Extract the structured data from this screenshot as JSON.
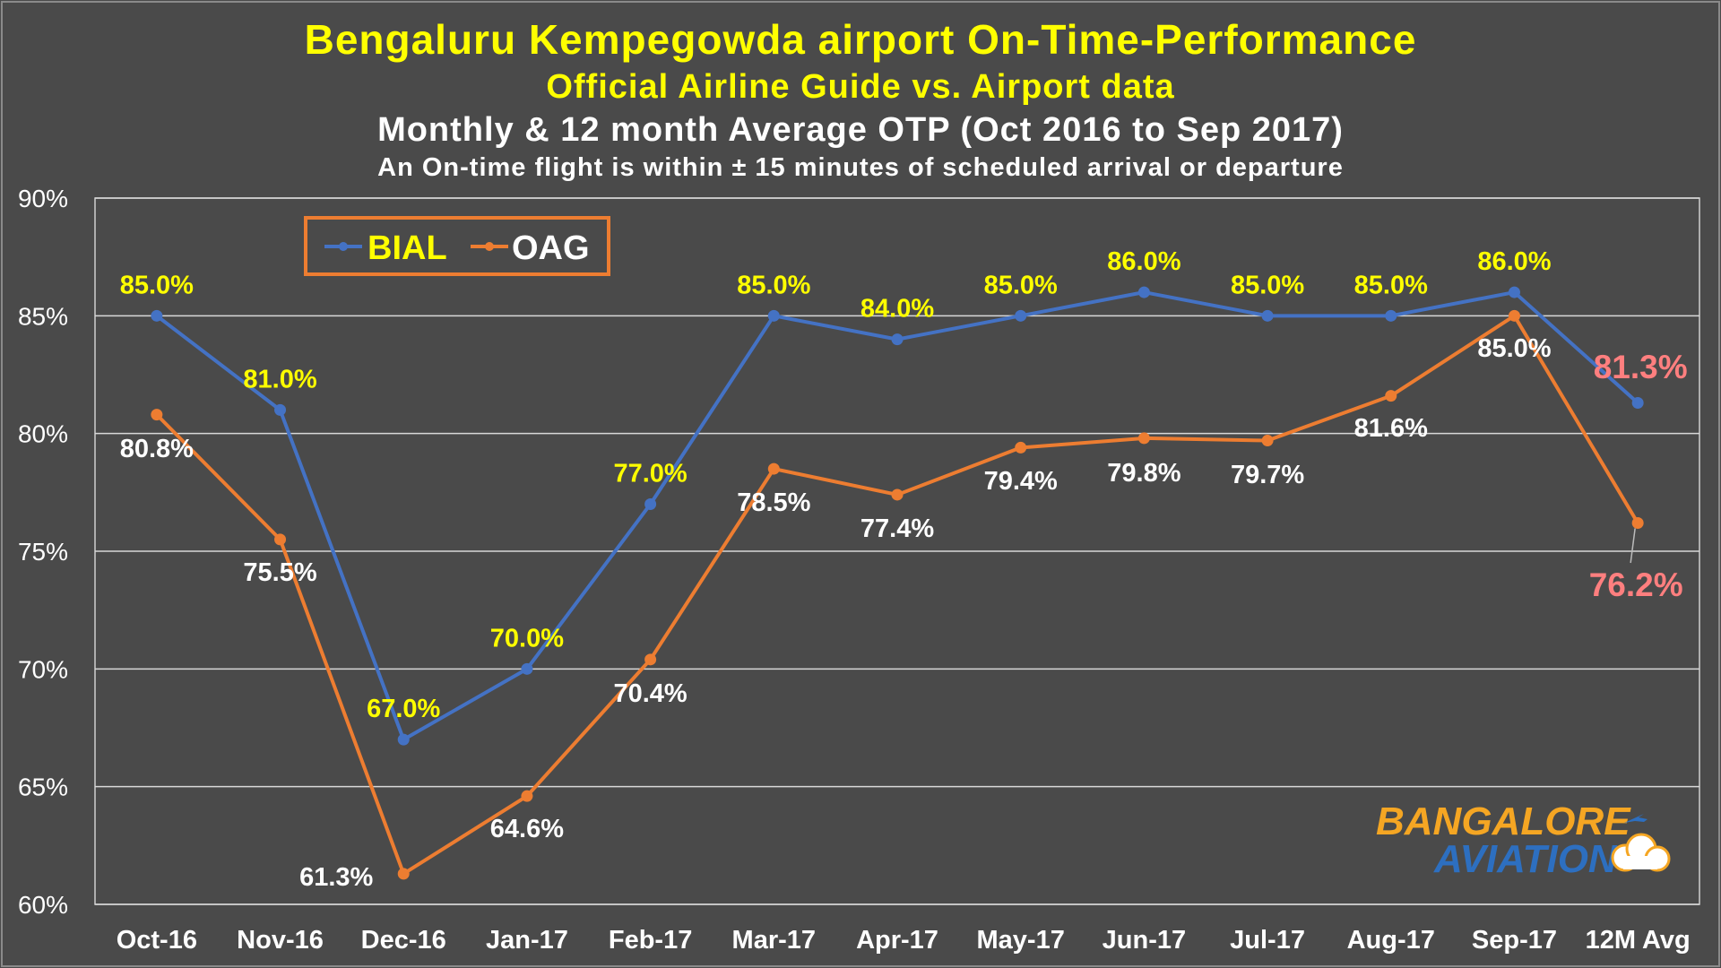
{
  "chart_data": {
    "type": "line",
    "title": "Bengaluru Kempegowda airport On-Time-Performance",
    "subtitle": "Official Airline Guide vs. Airport data",
    "subtitle2": "Monthly & 12 month Average OTP (Oct 2016 to Sep 2017)",
    "subtitle3": "An On-time flight is within ± 15 minutes of scheduled arrival or departure",
    "xlabel": "",
    "ylabel": "",
    "ylim": [
      60,
      90
    ],
    "yticks": [
      "60%",
      "65%",
      "70%",
      "75%",
      "80%",
      "85%",
      "90%"
    ],
    "categories": [
      "Oct-16",
      "Nov-16",
      "Dec-16",
      "Jan-17",
      "Feb-17",
      "Mar-17",
      "Apr-17",
      "May-17",
      "Jun-17",
      "Jul-17",
      "Aug-17",
      "Sep-17",
      "12M Avg"
    ],
    "grid": true,
    "legend_position": "top-left",
    "series": [
      {
        "name": "BIAL",
        "color": "#4472c4",
        "values": [
          85.0,
          81.0,
          67.0,
          70.0,
          77.0,
          85.0,
          84.0,
          85.0,
          86.0,
          85.0,
          85.0,
          86.0,
          81.3
        ],
        "labels": [
          "85.0%",
          "81.0%",
          "67.0%",
          "70.0%",
          "77.0%",
          "85.0%",
          "84.0%",
          "85.0%",
          "86.0%",
          "85.0%",
          "85.0%",
          "86.0%",
          "81.3%"
        ]
      },
      {
        "name": "OAG",
        "color": "#ed7d31",
        "values": [
          80.8,
          75.5,
          61.3,
          64.6,
          70.4,
          78.5,
          77.4,
          79.4,
          79.8,
          79.7,
          81.6,
          85.0,
          76.2
        ],
        "labels": [
          "80.8%",
          "75.5%",
          "61.3%",
          "64.6%",
          "70.4%",
          "78.5%",
          "77.4%",
          "79.4%",
          "79.8%",
          "79.7%",
          "81.6%",
          "85.0%",
          "76.2%"
        ]
      }
    ]
  },
  "colors": {
    "background": "#4a4a4a",
    "title": "#ffff00",
    "subtitle": "#ffffff",
    "bial_label": "#ffff00",
    "oag_label": "#ffffff",
    "avg_label": "#ff7f7f"
  },
  "watermark": {
    "line1": "BANGALORE",
    "line2": "AVIATION"
  }
}
